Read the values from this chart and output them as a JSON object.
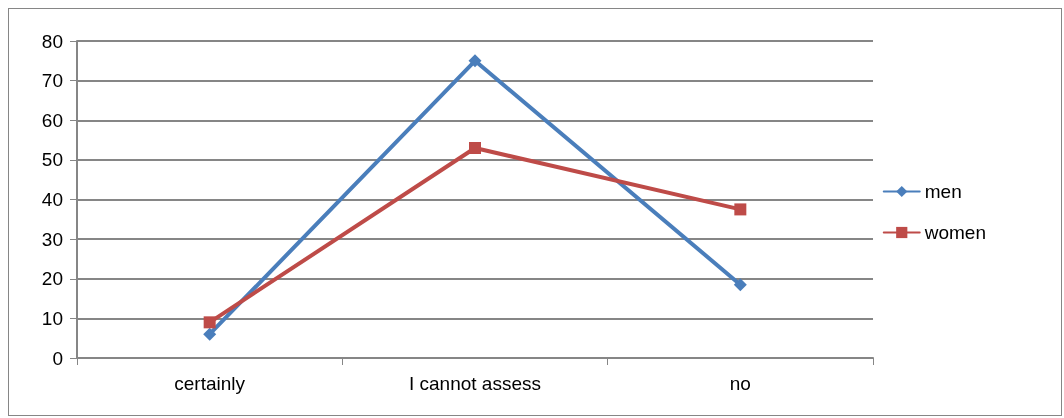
{
  "chart_data": {
    "type": "line",
    "categories": [
      "certainly",
      "I cannot assess",
      "no"
    ],
    "series": [
      {
        "name": "men",
        "color": "#4a7ebb",
        "marker": "diamond",
        "values": [
          6,
          75,
          18.5
        ]
      },
      {
        "name": "women",
        "color": "#be4b48",
        "marker": "square",
        "values": [
          9,
          53,
          37.5
        ]
      }
    ],
    "ylim": [
      0,
      80
    ],
    "yticks": [
      0,
      10,
      20,
      30,
      40,
      50,
      60,
      70,
      80
    ],
    "grid": "y",
    "legend": "right"
  }
}
